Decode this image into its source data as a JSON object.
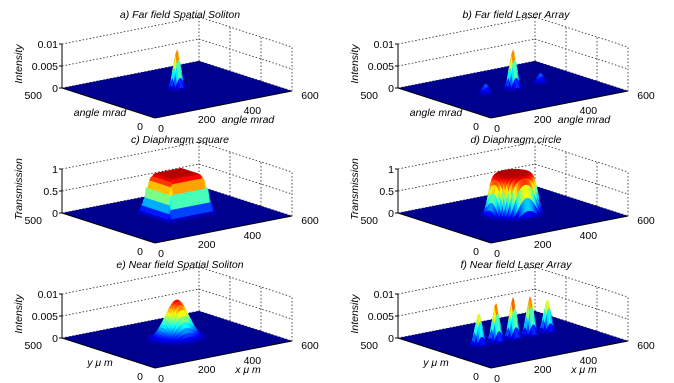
{
  "chart_data": [
    {
      "type": "surface",
      "title": "a) Far field Spatial Soliton",
      "zlabel": "Intensity",
      "xlabel": "angle mrad",
      "ylabel": "angle mrad",
      "zticks": [
        "0",
        "0.005",
        "0.01"
      ],
      "ylim_ticks": [
        "500",
        "0"
      ],
      "xticks": [
        "0",
        "200",
        "400",
        "600"
      ],
      "zlim": [
        0,
        0.01
      ],
      "peaks": [
        {
          "x": 0.5,
          "y": 0.5,
          "height": 0.009,
          "shape": "narrow-gaussian"
        }
      ],
      "colormap": "jet"
    },
    {
      "type": "surface",
      "title": "b) Far field Laser Array",
      "zlabel": "Intensity",
      "xlabel": "angle mrad",
      "ylabel": "angle mrad",
      "zticks": [
        "0",
        "0.005",
        "0.01"
      ],
      "ylim_ticks": [
        "500",
        "0"
      ],
      "xticks": [
        "0",
        "200",
        "400",
        "600"
      ],
      "zlim": [
        0,
        0.01
      ],
      "peaks": [
        {
          "x": 0.5,
          "y": 0.5,
          "height": 0.009,
          "shape": "narrow-gaussian"
        },
        {
          "x": 0.3,
          "y": 0.5,
          "height": 0.0025,
          "shape": "narrow-gaussian"
        },
        {
          "x": 0.7,
          "y": 0.5,
          "height": 0.0025,
          "shape": "narrow-gaussian"
        }
      ],
      "colormap": "jet"
    },
    {
      "type": "surface",
      "title": "c) Diaphragm square",
      "zlabel": "Transmission",
      "xlabel": "",
      "ylabel": "",
      "zticks": [
        "0",
        "0.5",
        "1"
      ],
      "ylim_ticks": [
        "500",
        "0"
      ],
      "xticks": [
        "0",
        "200",
        "400",
        "600"
      ],
      "zlim": [
        0,
        1
      ],
      "peaks": [
        {
          "x": 0.5,
          "y": 0.5,
          "height": 0.95,
          "shape": "flat-top-square"
        }
      ],
      "colormap": "jet"
    },
    {
      "type": "surface",
      "title": "d) Diaphragm circle",
      "zlabel": "Transmission",
      "xlabel": "",
      "ylabel": "",
      "zticks": [
        "0",
        "0.5",
        "1"
      ],
      "ylim_ticks": [
        "500",
        "0"
      ],
      "xticks": [
        "0",
        "200",
        "400",
        "600"
      ],
      "zlim": [
        0,
        1
      ],
      "peaks": [
        {
          "x": 0.5,
          "y": 0.5,
          "height": 0.95,
          "shape": "flat-top-circle"
        }
      ],
      "colormap": "jet"
    },
    {
      "type": "surface",
      "title": "e) Near field Spatial Soliton",
      "zlabel": "Intensity",
      "xlabel": "x μ m",
      "ylabel": "y μ m",
      "zticks": [
        "0",
        "0.005",
        "0.01"
      ],
      "ylim_ticks": [
        "500",
        "0"
      ],
      "xticks": [
        "0",
        "200",
        "400",
        "600"
      ],
      "zlim": [
        0,
        0.01
      ],
      "peaks": [
        {
          "x": 0.5,
          "y": 0.5,
          "height": 0.009,
          "shape": "wide-gaussian"
        }
      ],
      "colormap": "jet"
    },
    {
      "type": "surface",
      "title": "f) Near field Laser Array",
      "zlabel": "Intensity",
      "xlabel": "x μ m",
      "ylabel": "y μ m",
      "zticks": [
        "0",
        "0.005",
        "0.01"
      ],
      "ylim_ticks": [
        "500",
        "0"
      ],
      "xticks": [
        "0",
        "200",
        "400",
        "600"
      ],
      "zlim": [
        0,
        0.01
      ],
      "peaks": [
        {
          "x": 0.25,
          "y": 0.5,
          "height": 0.0075,
          "shape": "narrow-gaussian"
        },
        {
          "x": 0.375,
          "y": 0.5,
          "height": 0.009,
          "shape": "narrow-gaussian"
        },
        {
          "x": 0.5,
          "y": 0.5,
          "height": 0.0095,
          "shape": "narrow-gaussian"
        },
        {
          "x": 0.625,
          "y": 0.5,
          "height": 0.009,
          "shape": "narrow-gaussian"
        },
        {
          "x": 0.75,
          "y": 0.5,
          "height": 0.0075,
          "shape": "narrow-gaussian"
        }
      ],
      "colormap": "jet"
    }
  ]
}
